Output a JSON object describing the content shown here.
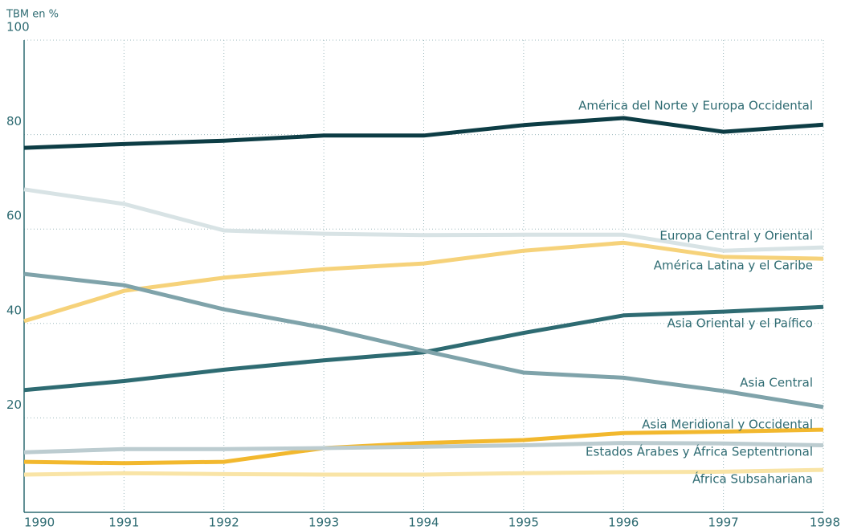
{
  "chart_data": {
    "type": "line",
    "y_axis_label": "TBM en %",
    "x": [
      1990,
      1991,
      1992,
      1993,
      1994,
      1995,
      1996,
      1997,
      1998
    ],
    "xlim": [
      1990,
      1998
    ],
    "xticks": [
      1990,
      1991,
      1992,
      1993,
      1994,
      1995,
      1996,
      1997,
      1998
    ],
    "ylim": [
      0,
      100
    ],
    "yticks": [
      20,
      40,
      60,
      80,
      100
    ],
    "grid": true,
    "series": [
      {
        "name": "América del Norte y Europa Occidental",
        "color": "#0d3d45",
        "values": [
          77.2,
          78,
          78.7,
          79.8,
          79.8,
          82,
          83.5,
          80.6,
          82.1
        ]
      },
      {
        "name": "Europa Central y Oriental",
        "color": "#d8e3e5",
        "values": [
          68.4,
          65.3,
          59.7,
          59,
          58.7,
          58.8,
          58.8,
          55.4,
          56.1
        ]
      },
      {
        "name": "América Latina y el Caribe",
        "color": "#f6d27a",
        "values": [
          40.5,
          46.9,
          49.7,
          51.5,
          52.7,
          55.4,
          57.1,
          54.1,
          53.7
        ]
      },
      {
        "name": "Asia Oriental y el Paífico",
        "color": "#2e6b72",
        "values": [
          25.9,
          27.8,
          30.2,
          32.2,
          33.9,
          38,
          41.7,
          42.5,
          43.5
        ]
      },
      {
        "name": "Asia Central",
        "color": "#7fa3aa",
        "values": [
          50.5,
          48.1,
          43,
          39.1,
          34.2,
          29.6,
          28.5,
          25.7,
          22.3
        ]
      },
      {
        "name": "Asia Meridional y Occidental",
        "color": "#f2b82e",
        "values": [
          10.7,
          10.4,
          10.7,
          13.6,
          14.7,
          15.3,
          16.8,
          17.1,
          17.5
        ]
      },
      {
        "name": "Estados Árabes y África Septentrional",
        "color": "#bcccd0",
        "values": [
          12.7,
          13.4,
          13.4,
          13.6,
          13.9,
          14.2,
          14.7,
          14.6,
          14.2
        ]
      },
      {
        "name": "África Subsahariana",
        "color": "#f9e4a6",
        "values": [
          8,
          8.3,
          8.1,
          8,
          8,
          8.3,
          8.5,
          8.6,
          9
        ]
      }
    ]
  }
}
